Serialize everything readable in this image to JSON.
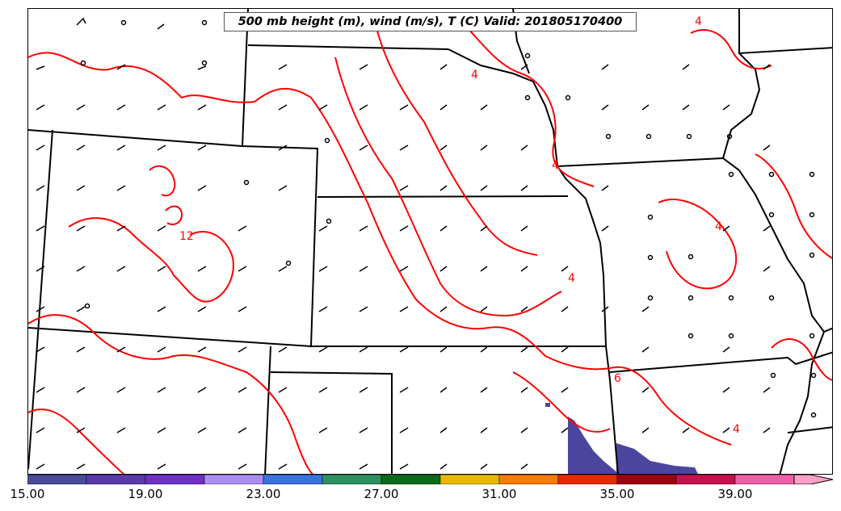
{
  "title": "500 mb height (m), wind (m/s), T (C) Valid: 201805170400",
  "contour_labels": [
    "4",
    "4",
    "4",
    "12",
    "4",
    "4",
    "6",
    "4"
  ],
  "colorbar": {
    "ticks": [
      "15.00",
      "19.00",
      "23.00",
      "27.00",
      "31.00",
      "35.00",
      "39.00"
    ],
    "colors": [
      "#4a4a9a",
      "#5a3aa8",
      "#7030c8",
      "#a98ef0",
      "#3a72e0",
      "#2e9060",
      "#0a6a1a",
      "#e8b800",
      "#ff7a00",
      "#e52a00",
      "#a00010",
      "#c8104e",
      "#f060a8",
      "#ffa0c8"
    ]
  },
  "colors": {
    "contour": "#ff0000",
    "borders": "#000000",
    "shaded": "#4b45a0"
  }
}
